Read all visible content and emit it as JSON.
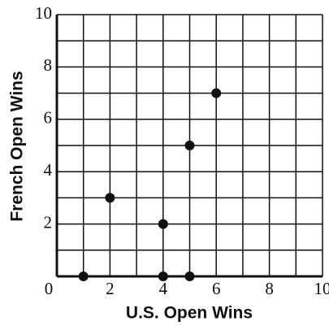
{
  "chart_data": {
    "type": "scatter",
    "xlabel": "U.S. Open Wins",
    "ylabel": "French Open Wins",
    "x": [
      1,
      2,
      4,
      4,
      5,
      5,
      6
    ],
    "values": [
      0,
      3,
      2,
      0,
      5,
      0,
      7
    ],
    "color": "#111111",
    "xlim": [
      0,
      10
    ],
    "ylim": [
      0,
      10
    ],
    "xticks": [
      0,
      2,
      4,
      6,
      8,
      10
    ],
    "yticks": [
      2,
      4,
      6,
      8,
      10
    ],
    "xgrid": [
      0,
      1,
      2,
      3,
      4,
      5,
      6,
      7,
      8,
      9,
      10
    ],
    "ygrid": [
      0,
      1,
      2,
      3,
      4,
      5,
      6,
      7,
      8,
      9,
      10
    ]
  }
}
